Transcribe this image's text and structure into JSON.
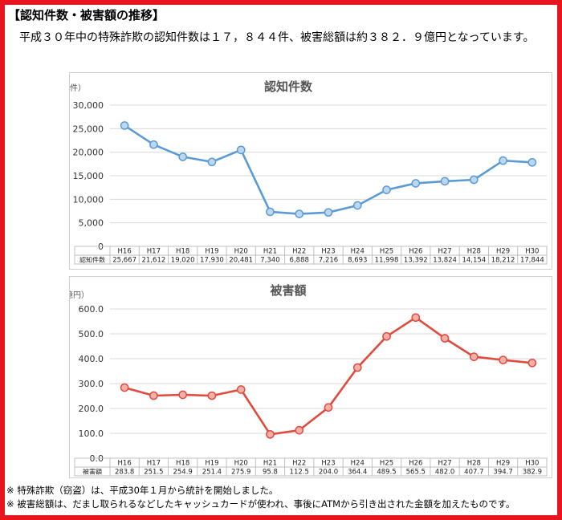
{
  "heading": "【認知件数・被害額の推移】",
  "intro": "平成３０年中の特殊詐欺の認知件数は１７，８４４件、被害総額は約３８２．９億円となっています。",
  "notes": [
    "※ 特殊詐欺（窃盗）は、平成30年１月から統計を開始しました。",
    "※ 被害総額は、だまし取られるなどしたキャッシュカードが使われ、事後にATMから引き出された金額を加えたものです。"
  ],
  "chart_data": [
    {
      "type": "line",
      "title": "認知件数",
      "unit": "（件）",
      "table_row_label": "認知件数",
      "categories": [
        "H16",
        "H17",
        "H18",
        "H19",
        "H20",
        "H21",
        "H22",
        "H23",
        "H24",
        "H25",
        "H26",
        "H27",
        "H28",
        "H29",
        "H30"
      ],
      "values": [
        25667,
        21612,
        19020,
        17930,
        20481,
        7340,
        6888,
        7216,
        8693,
        11998,
        13392,
        13824,
        14154,
        18212,
        17844
      ],
      "value_labels": [
        "25,667",
        "21,612",
        "19,020",
        "17,930",
        "20,481",
        "7,340",
        "6,888",
        "7,216",
        "8,693",
        "11,998",
        "13,392",
        "13,824",
        "14,154",
        "18,212",
        "17,844"
      ],
      "yticks": [
        "0",
        "5,000",
        "10,000",
        "15,000",
        "20,000",
        "25,000",
        "30,000"
      ],
      "ylim": [
        0,
        30000
      ],
      "line_color": "#5b9bd5",
      "marker_fill": "#bdd7ee",
      "grid": true
    },
    {
      "type": "line",
      "title": "被害額",
      "unit": "（億円）",
      "table_row_label": "被害額",
      "categories": [
        "H16",
        "H17",
        "H18",
        "H19",
        "H20",
        "H21",
        "H22",
        "H23",
        "H24",
        "H25",
        "H26",
        "H27",
        "H28",
        "H29",
        "H30"
      ],
      "values": [
        283.8,
        251.5,
        254.9,
        251.4,
        275.9,
        95.8,
        112.5,
        204.0,
        364.4,
        489.5,
        565.5,
        482.0,
        407.7,
        394.7,
        382.9
      ],
      "value_labels": [
        "283.8",
        "251.5",
        "254.9",
        "251.4",
        "275.9",
        "95.8",
        "112.5",
        "204.0",
        "364.4",
        "489.5",
        "565.5",
        "482.0",
        "407.7",
        "394.7",
        "382.9"
      ],
      "yticks": [
        "0.0",
        "100.0",
        "200.0",
        "300.0",
        "400.0",
        "500.0",
        "600.0"
      ],
      "ylim": [
        0,
        600
      ],
      "line_color": "#e04b3d",
      "marker_fill": "#f3b0a8",
      "grid": true
    }
  ]
}
